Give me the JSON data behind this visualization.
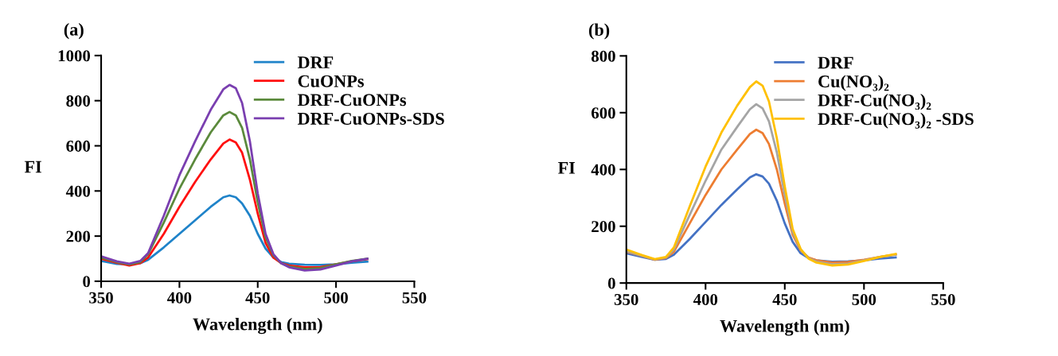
{
  "chart_data": [
    {
      "type": "line",
      "title": "(a)",
      "xlabel": "Wavelength (nm)",
      "ylabel": "FI",
      "xlim": [
        350,
        550
      ],
      "xticks": [
        350,
        400,
        450,
        500,
        550
      ],
      "ylim": [
        0,
        1000
      ],
      "yticks": [
        0,
        200,
        400,
        600,
        800,
        1000
      ],
      "grid": false,
      "legend": "top right",
      "marker": "none",
      "line_style": "solid",
      "x": [
        350,
        360,
        368,
        375,
        380,
        390,
        400,
        410,
        420,
        428,
        432,
        436,
        440,
        445,
        450,
        455,
        460,
        465,
        470,
        480,
        490,
        500,
        510,
        520
      ],
      "series": [
        {
          "name": "DRF",
          "color": "#1f83c9",
          "values": [
            90,
            77,
            75,
            80,
            95,
            150,
            210,
            270,
            330,
            372,
            380,
            372,
            345,
            290,
            210,
            145,
            105,
            85,
            78,
            73,
            72,
            75,
            82,
            87
          ]
        },
        {
          "name": "CuONPs",
          "color": "#ff1010",
          "values": [
            100,
            82,
            70,
            80,
            105,
            210,
            330,
            440,
            540,
            610,
            628,
            615,
            570,
            450,
            300,
            170,
            105,
            80,
            70,
            62,
            63,
            75,
            88,
            98
          ]
        },
        {
          "name": "DRF-CuONPs",
          "color": "#5b8a3c",
          "values": [
            105,
            85,
            75,
            85,
            120,
            260,
            410,
            540,
            660,
            735,
            750,
            735,
            680,
            540,
            350,
            195,
            115,
            80,
            65,
            55,
            58,
            75,
            90,
            100
          ]
        },
        {
          "name": "DRF-CuONPs-SDS",
          "color": "#7a3fb0",
          "values": [
            110,
            88,
            78,
            90,
            125,
            290,
            470,
            620,
            760,
            850,
            870,
            855,
            790,
            620,
            390,
            210,
            120,
            80,
            62,
            48,
            52,
            70,
            88,
            100
          ]
        }
      ]
    },
    {
      "type": "line",
      "title": "(b)",
      "xlabel": "Wavelength (nm)",
      "ylabel": "FI",
      "xlim": [
        350,
        550
      ],
      "xticks": [
        350,
        400,
        450,
        500,
        550
      ],
      "ylim": [
        0,
        800
      ],
      "yticks": [
        0,
        200,
        400,
        600,
        800
      ],
      "grid": false,
      "legend": "top right",
      "marker": "none",
      "line_style": "solid",
      "x": [
        350,
        360,
        368,
        375,
        380,
        390,
        400,
        410,
        420,
        428,
        432,
        436,
        440,
        445,
        450,
        455,
        460,
        465,
        470,
        480,
        490,
        500,
        510,
        520
      ],
      "series": [
        {
          "name": "DRF",
          "color": "#4472c4",
          "values": [
            105,
            92,
            82,
            85,
            100,
            155,
            215,
            275,
            330,
            372,
            383,
            375,
            350,
            290,
            210,
            145,
            105,
            88,
            80,
            75,
            76,
            80,
            86,
            90
          ]
        },
        {
          "name": "Cu(NO₃)₂",
          "color": "#ed7d31",
          "values": [
            110,
            95,
            82,
            88,
            110,
            210,
            310,
            400,
            470,
            525,
            540,
            528,
            490,
            400,
            280,
            170,
            115,
            90,
            80,
            72,
            74,
            82,
            92,
            100
          ]
        },
        {
          "name": "DRF-Cu(NO₃)₂",
          "color": "#a5a5a5",
          "values": [
            112,
            96,
            83,
            90,
            118,
            240,
            360,
            470,
            550,
            612,
            630,
            615,
            570,
            460,
            310,
            180,
            118,
            88,
            75,
            66,
            68,
            80,
            92,
            100
          ]
        },
        {
          "name": "DRF-Cu(NO₃)₂ -SDS",
          "color": "#ffc000",
          "values": [
            118,
            98,
            84,
            92,
            125,
            270,
            410,
            530,
            625,
            690,
            710,
            695,
            640,
            510,
            340,
            190,
            120,
            86,
            72,
            62,
            65,
            78,
            92,
            102
          ]
        }
      ]
    }
  ]
}
